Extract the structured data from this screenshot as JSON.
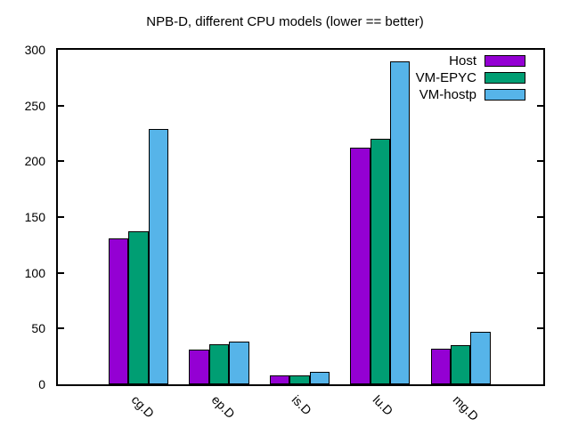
{
  "window": {
    "background": "#ffffff",
    "text_color": "#000000"
  },
  "chart_data": {
    "type": "bar",
    "title": "NPB-D, different CPU models (lower == better)",
    "categories": [
      "cg.D",
      "ep.D",
      "is.D",
      "lu.D",
      "mg.D"
    ],
    "series": [
      {
        "name": "Host",
        "color": "#9400d3",
        "values": [
          131,
          31,
          8,
          212,
          32
        ]
      },
      {
        "name": "VM-EPYC",
        "color": "#009e73",
        "values": [
          137,
          36,
          8,
          220,
          35
        ]
      },
      {
        "name": "VM-hostp",
        "color": "#56b4e9",
        "values": [
          229,
          38,
          11,
          290,
          47
        ]
      }
    ],
    "ylim": [
      0,
      300
    ],
    "yticks": [
      0,
      50,
      100,
      150,
      200,
      250,
      300
    ],
    "xlabel": "",
    "ylabel": "",
    "grid": false,
    "legend_position": "top-right",
    "bar_border_color": "#000000",
    "axis_color": "#000000",
    "tick_label_rotation_deg": 45
  }
}
